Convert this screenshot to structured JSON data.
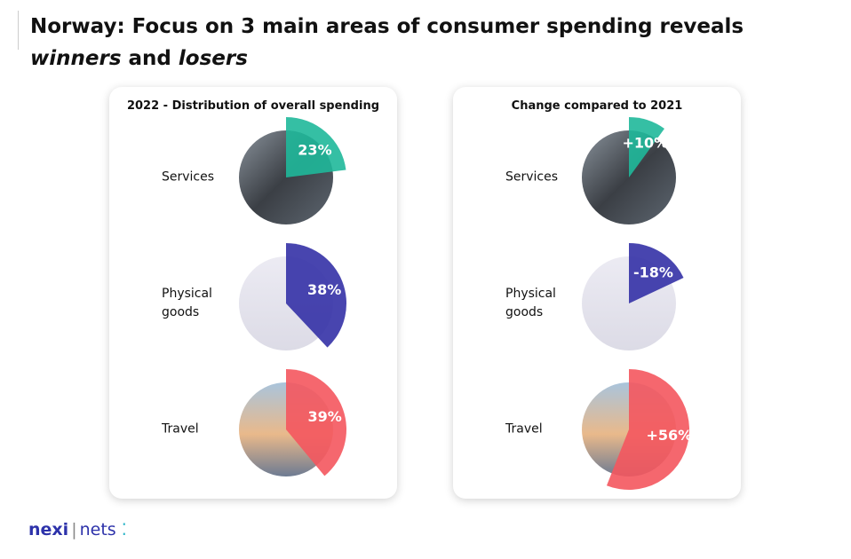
{
  "header": {
    "title_parts": [
      "Norway: Focus on 3 main areas of consumer spending reveals",
      "winners",
      "and",
      "losers"
    ]
  },
  "chart_data": [
    {
      "type": "pie",
      "title": "2022 - Distribution of overall spending",
      "categories": [
        "Services",
        "Physical goods",
        "Travel"
      ],
      "values": [
        23,
        38,
        39
      ],
      "value_labels": [
        "23%",
        "38%",
        "39%"
      ],
      "colors": [
        "#1fb89a",
        "#3431a6",
        "#f4565e"
      ]
    },
    {
      "type": "pie",
      "title": "Change compared to 2021",
      "categories": [
        "Services",
        "Physical goods",
        "Travel"
      ],
      "values": [
        10,
        -18,
        56
      ],
      "value_labels": [
        "+10%",
        "-18%",
        "+56%"
      ],
      "colors": [
        "#1fb89a",
        "#3431a6",
        "#f4565e"
      ]
    }
  ],
  "logo": [
    "nexi",
    "nets"
  ]
}
